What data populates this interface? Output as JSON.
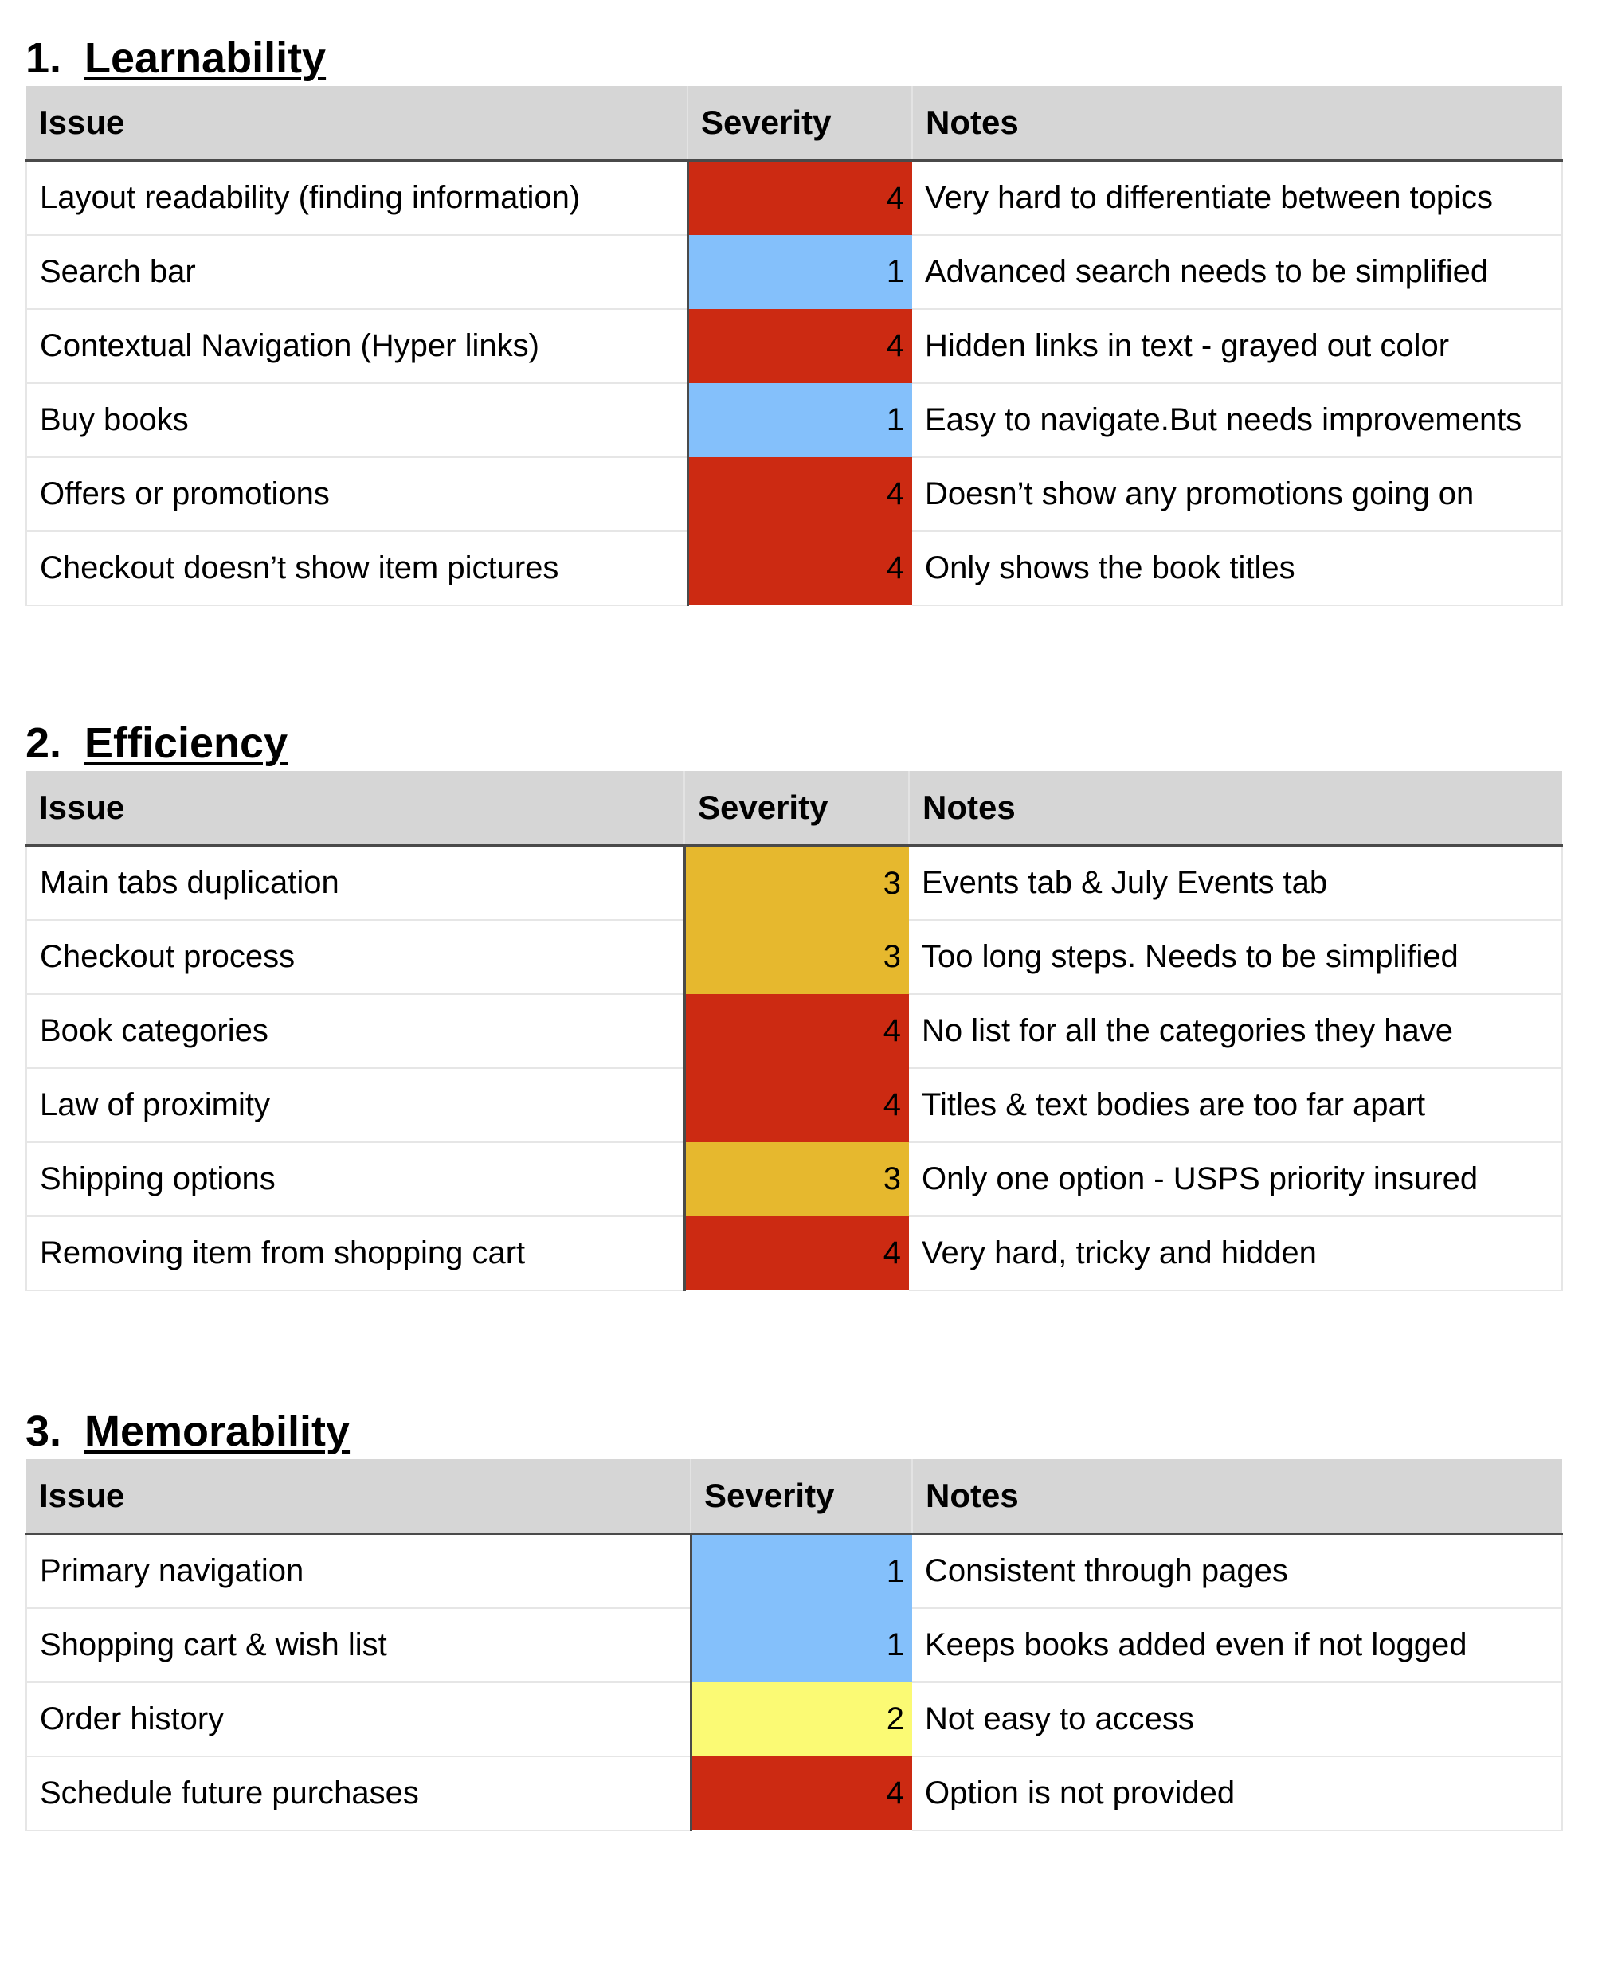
{
  "severity_colors": {
    "1": "#84c0fb",
    "2": "#fbfa74",
    "3": "#e6b82e",
    "4": "#cc2a12"
  },
  "sections": [
    {
      "number": "1.",
      "title": "Learnability",
      "headers": [
        "Issue",
        "Severity",
        "Notes"
      ],
      "rows": [
        {
          "issue": "Layout readability (finding information)",
          "severity": "4",
          "notes": "Very hard to differentiate between topics"
        },
        {
          "issue": "Search bar",
          "severity": "1",
          "notes": "Advanced search needs to be simplified"
        },
        {
          "issue": "Contextual Navigation (Hyper links)",
          "severity": "4",
          "notes": "Hidden links in text - grayed out color"
        },
        {
          "issue": "Buy books",
          "severity": "1",
          "notes": "Easy to navigate.But needs improvements"
        },
        {
          "issue": "Offers or promotions",
          "severity": "4",
          "notes": "Doesn’t show any promotions going on"
        },
        {
          "issue": "Checkout doesn’t show item pictures",
          "severity": "4",
          "notes": "Only shows the book titles"
        }
      ]
    },
    {
      "number": "2.",
      "title": "Efficiency",
      "headers": [
        "Issue",
        "Severity",
        "Notes"
      ],
      "rows": [
        {
          "issue": "Main tabs duplication",
          "severity": "3",
          "notes": "Events tab & July Events tab"
        },
        {
          "issue": "Checkout process",
          "severity": "3",
          "notes": "Too long steps. Needs to be simplified"
        },
        {
          "issue": "Book categories",
          "severity": "4",
          "notes": "No list for all the categories they have"
        },
        {
          "issue": "Law of proximity",
          "severity": "4",
          "notes": "Titles & text bodies are too far apart"
        },
        {
          "issue": "Shipping options",
          "severity": "3",
          "notes": "Only one option - USPS priority insured"
        },
        {
          "issue": "Removing item from shopping cart",
          "severity": "4",
          "notes": "Very hard, tricky and hidden"
        }
      ]
    },
    {
      "number": "3.",
      "title": "Memorability",
      "headers": [
        "Issue",
        "Severity",
        "Notes"
      ],
      "rows": [
        {
          "issue": "Primary navigation",
          "severity": "1",
          "notes": "Consistent through pages"
        },
        {
          "issue": "Shopping cart & wish list",
          "severity": "1",
          "notes": "Keeps books added even if not logged"
        },
        {
          "issue": "Order history",
          "severity": "2",
          "notes": "Not easy to access"
        },
        {
          "issue": "Schedule future purchases",
          "severity": "4",
          "notes": "Option is not provided"
        }
      ]
    }
  ]
}
